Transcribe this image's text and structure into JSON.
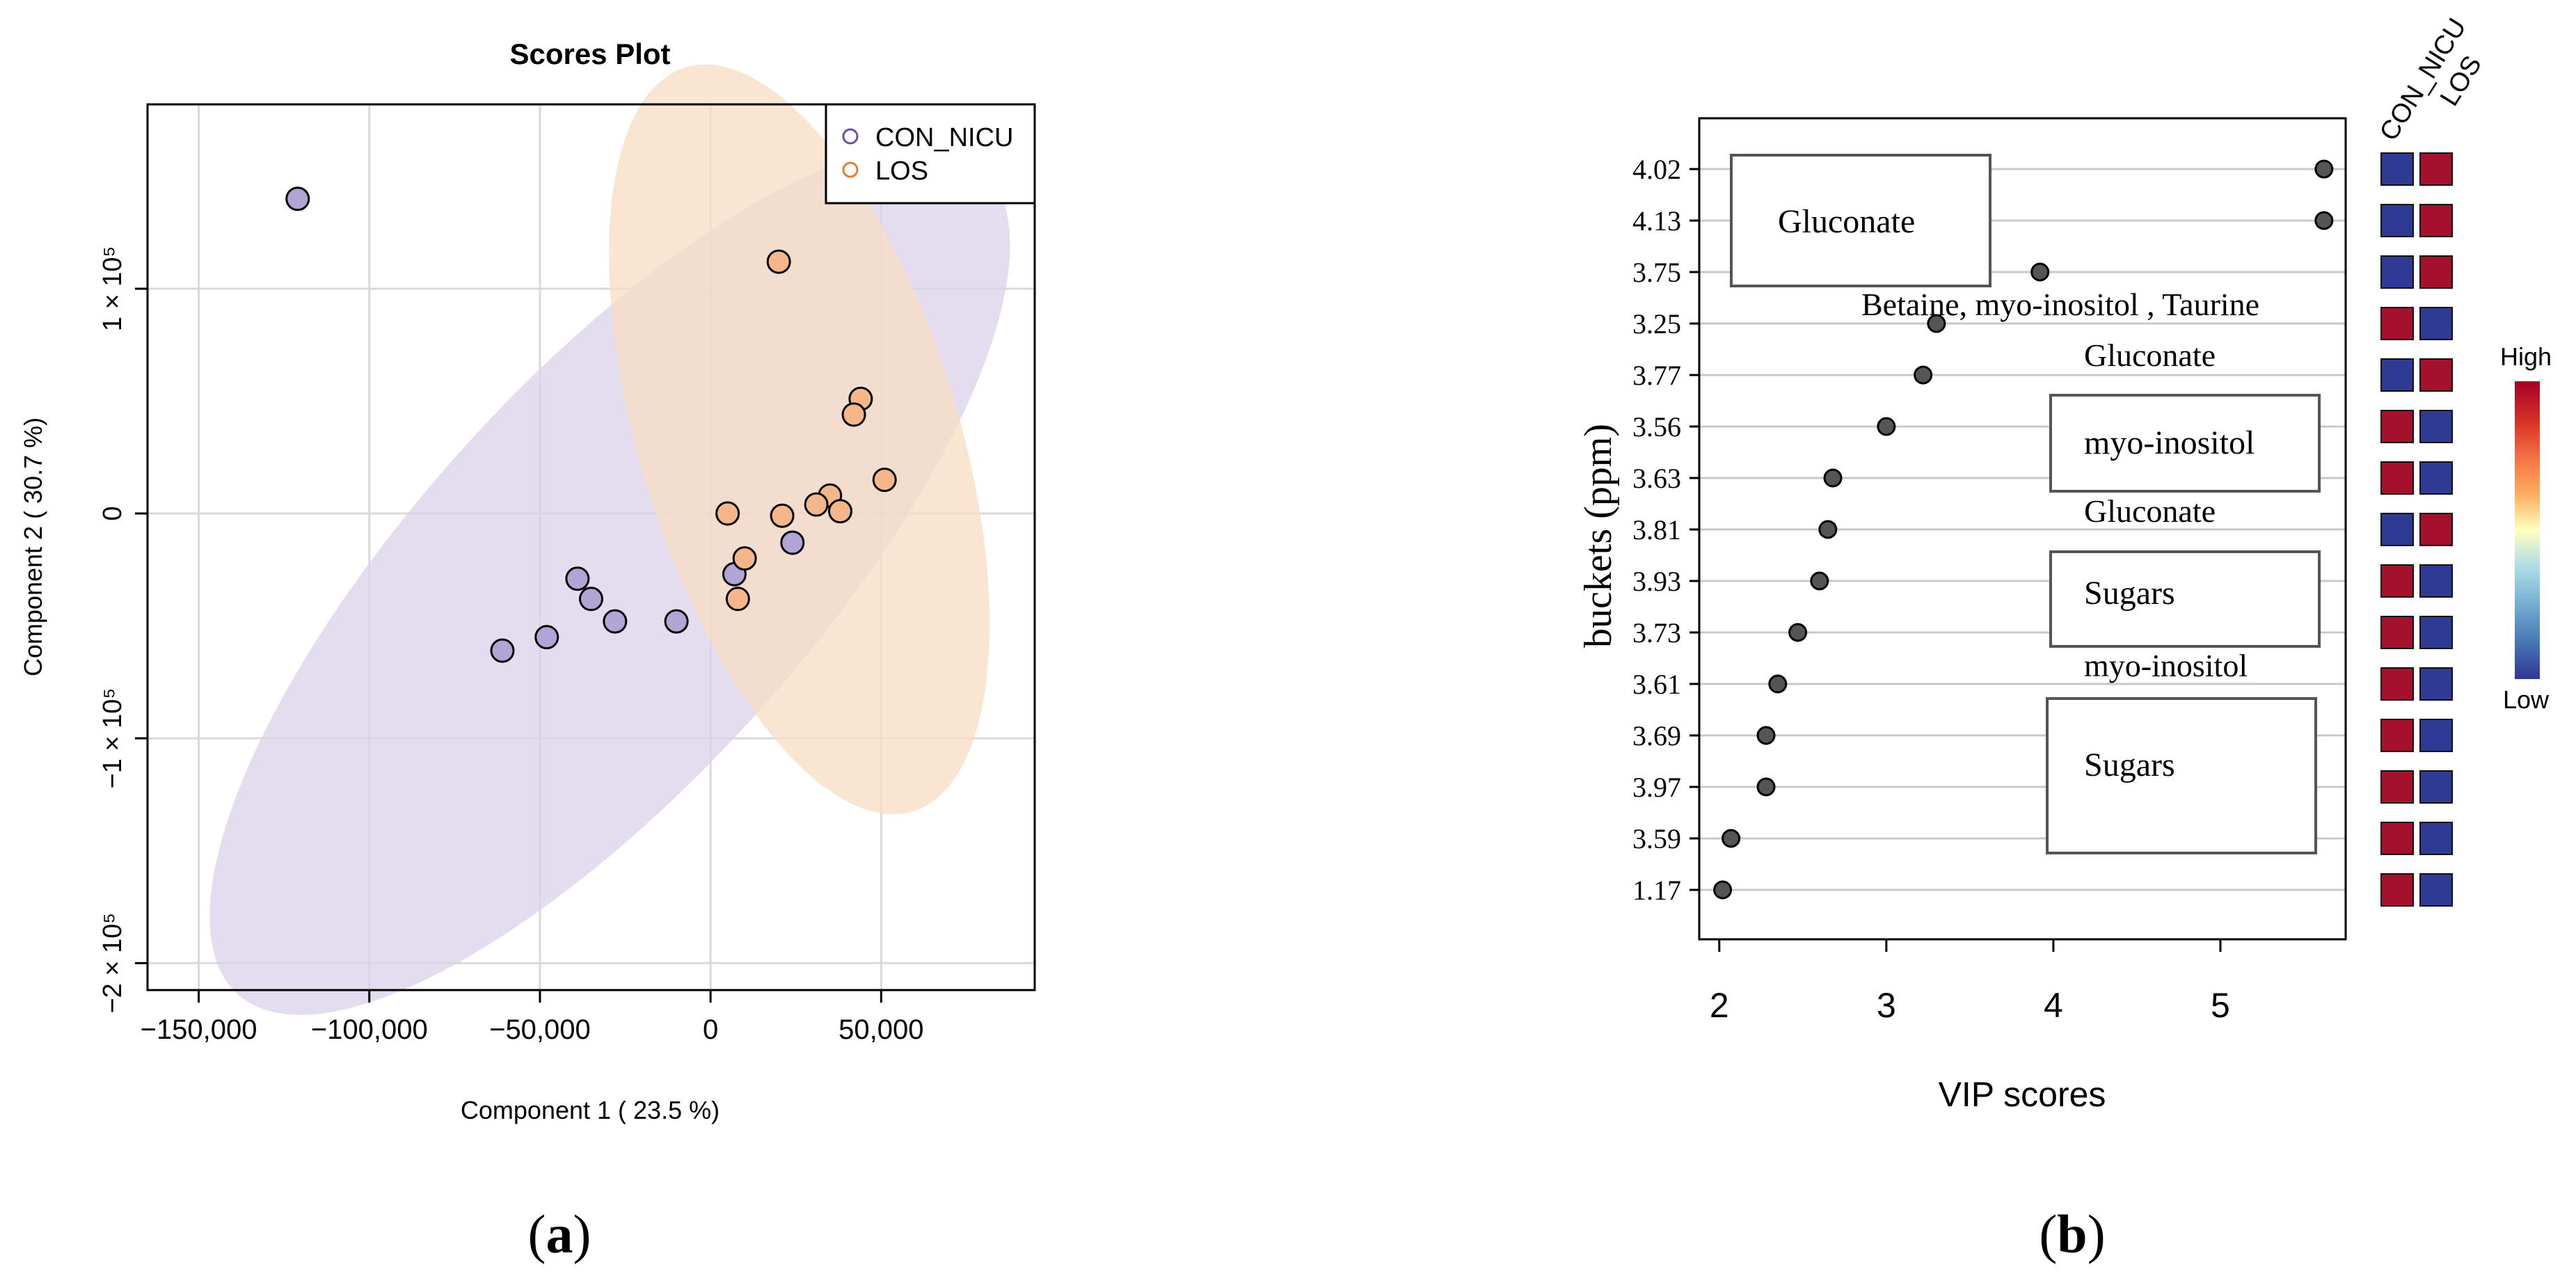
{
  "chart_data": [
    {
      "panel": "a",
      "type": "scatter",
      "title": "Scores Plot",
      "xlabel": "Component 1 ( 23.5 %)",
      "ylabel": "Component 2 ( 30.7 %)",
      "xlim": [
        -165000,
        95000
      ],
      "ylim": [
        -212000,
        182000
      ],
      "x_ticks": [
        {
          "value": -150000,
          "label": "−150,000"
        },
        {
          "value": -100000,
          "label": "−100,000"
        },
        {
          "value": -50000,
          "label": "−50,000"
        },
        {
          "value": 0,
          "label": "0"
        },
        {
          "value": 50000,
          "label": "50,000"
        }
      ],
      "y_ticks": [
        {
          "value": 100000,
          "label": "1 × 10⁵"
        },
        {
          "value": 0,
          "label": "0"
        },
        {
          "value": -100000,
          "label": "−1 × 10⁵"
        },
        {
          "value": -200000,
          "label": "−2 × 10⁵"
        }
      ],
      "grid": true,
      "legend_position": "top-right",
      "series": [
        {
          "name": "CON_NICU",
          "color": "#b3a4d6",
          "legend_color": "#6a4fa5",
          "ellipse_fill": "#d9d2ea",
          "ellipse": {
            "cx": -29500,
            "cy": -30000,
            "rx": 163000,
            "ry": 88000,
            "angle_deg": -48
          },
          "points": [
            {
              "x": -121000,
              "y": 140000
            },
            {
              "x": -61000,
              "y": -61000
            },
            {
              "x": -48000,
              "y": -55000
            },
            {
              "x": -39000,
              "y": -29000
            },
            {
              "x": -35000,
              "y": -38000
            },
            {
              "x": -28000,
              "y": -48000
            },
            {
              "x": -10000,
              "y": -48000
            },
            {
              "x": 7000,
              "y": -27000
            },
            {
              "x": 24000,
              "y": -13000
            }
          ]
        },
        {
          "name": "LOS",
          "color": "#f5b68a",
          "legend_color": "#ec7a2c",
          "ellipse_fill": "#f8dcc4",
          "ellipse": {
            "cx": 26000,
            "cy": 33000,
            "rx": 114000,
            "ry": 71000,
            "angle_deg": 73
          },
          "points": [
            {
              "x": 20000,
              "y": 112000
            },
            {
              "x": 44000,
              "y": 51000
            },
            {
              "x": 42000,
              "y": 44000
            },
            {
              "x": 51000,
              "y": 15000
            },
            {
              "x": 35000,
              "y": 8000
            },
            {
              "x": 31000,
              "y": 4000
            },
            {
              "x": 38000,
              "y": 1000
            },
            {
              "x": 5000,
              "y": 0
            },
            {
              "x": 21000,
              "y": -1000
            },
            {
              "x": 10000,
              "y": -20000
            },
            {
              "x": 8000,
              "y": -38000
            }
          ]
        }
      ],
      "caption": "a"
    },
    {
      "panel": "b",
      "type": "dot",
      "xlabel": "VIP scores",
      "ylabel": "buckets (ppm)",
      "xlim": [
        1.88,
        5.75
      ],
      "x_ticks": [
        2,
        3,
        4,
        5
      ],
      "categories": [
        "4.02",
        "4.13",
        "3.75",
        "3.25",
        "3.77",
        "3.56",
        "3.63",
        "3.81",
        "3.93",
        "3.73",
        "3.61",
        "3.69",
        "3.97",
        "3.59",
        "1.17"
      ],
      "values": [
        5.62,
        5.62,
        3.92,
        3.3,
        3.22,
        3.0,
        2.68,
        2.65,
        2.6,
        2.47,
        2.35,
        2.28,
        2.28,
        2.07,
        2.02
      ],
      "heatmap": {
        "columns": [
          "CON_NICU",
          "LOS"
        ],
        "levels": [
          [
            "low",
            "high"
          ],
          [
            "low",
            "high"
          ],
          [
            "low",
            "high"
          ],
          [
            "high",
            "low"
          ],
          [
            "low",
            "high"
          ],
          [
            "high",
            "low"
          ],
          [
            "high",
            "low"
          ],
          [
            "low",
            "high"
          ],
          [
            "high",
            "low"
          ],
          [
            "high",
            "low"
          ],
          [
            "high",
            "low"
          ],
          [
            "high",
            "low"
          ],
          [
            "high",
            "low"
          ],
          [
            "high",
            "low"
          ],
          [
            "high",
            "low"
          ]
        ],
        "high_color": "#a5102d",
        "low_color": "#2f3a94",
        "scale_high_label": "High",
        "scale_low_label": "Low"
      },
      "annotations": [
        {
          "text": "Gluconate",
          "boxed": true,
          "rows": [
            0,
            2
          ]
        },
        {
          "text": "Betaine, myo-inositol , Taurine",
          "boxed": false,
          "row": 3
        },
        {
          "text": "Gluconate",
          "boxed": false,
          "row": 4
        },
        {
          "text": "myo-inositol",
          "boxed": true,
          "rows": [
            5,
            6
          ]
        },
        {
          "text": "Gluconate",
          "boxed": false,
          "row": 7
        },
        {
          "text": "Sugars",
          "boxed": true,
          "rows": [
            8,
            9
          ]
        },
        {
          "text": "myo-inositol",
          "boxed": false,
          "row": 10
        },
        {
          "text": "Sugars",
          "boxed": true,
          "rows": [
            11,
            13
          ]
        }
      ],
      "caption": "b"
    }
  ]
}
